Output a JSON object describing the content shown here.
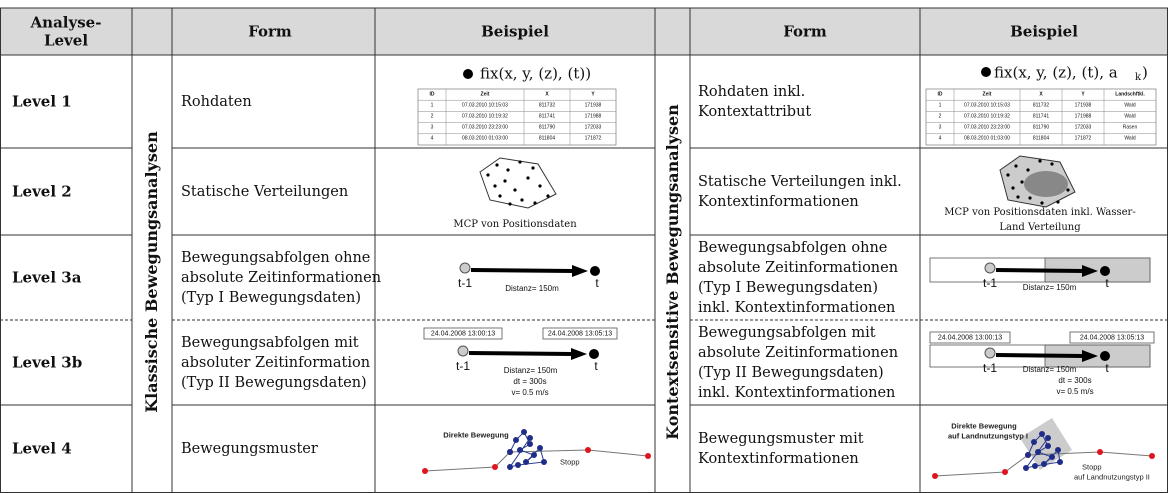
{
  "header": {
    "level": [
      "Analyse-",
      "Level"
    ],
    "form_left": "Form",
    "example_left": "Beispiel",
    "form_right": "Form",
    "example_right": "Beispiel"
  },
  "groups": {
    "left": "Klassische Bewegungsanalysen",
    "right": "Kontextsensitive Bewegungsanalysen"
  },
  "rows": [
    {
      "level": "Level 1",
      "form_left": [
        "Rohdaten"
      ],
      "form_right": [
        "Rohdaten inkl.",
        "Kontextattribut"
      ]
    },
    {
      "level": "Level 2",
      "form_left": [
        "Statische Verteilungen"
      ],
      "form_right": [
        "Statische Verteilungen inkl.",
        "Kontextinformationen"
      ]
    },
    {
      "level": "Level 3a",
      "form_left": [
        "Bewegungsabfolgen ohne",
        "absolute Zeitinformationen",
        "(Typ I Bewegungsdaten)"
      ],
      "form_right": [
        "Bewegungsabfolgen ohne",
        "absolute Zeitinformationen",
        "(Typ I Bewegungsdaten)",
        "inkl. Kontextinformationen"
      ]
    },
    {
      "level": "Level 3b",
      "form_left": [
        "Bewegungsabfolgen mit",
        "absoluter Zeitinformation",
        "(Typ II Bewegungsdaten)"
      ],
      "form_right": [
        "Bewegungsabfolgen mit",
        "absolute Zeitinformationen",
        "(Typ II Bewegungsdaten)",
        "inkl.  Kontextinformationen"
      ]
    },
    {
      "level": "Level 4",
      "form_left": [
        "Bewegungsmuster"
      ],
      "form_right": [
        "Bewegungsmuster mit",
        "Kontextinformationen"
      ]
    }
  ],
  "examples": {
    "level1_left": {
      "formula": "fix(x, y, (z), (t))",
      "table": {
        "header": [
          "ID",
          "Zeit",
          "X",
          "Y"
        ],
        "rows": [
          [
            "1",
            "07.03.2010 10:15:03",
            "811732",
            "171938"
          ],
          [
            "2",
            "07.03.2010 10:19:32",
            "811741",
            "171988"
          ],
          [
            "3",
            "07.03.2010 23:23:00",
            "811790",
            "172033"
          ],
          [
            "4",
            "08.03.2010 01:03:00",
            "811804",
            "171872"
          ]
        ]
      }
    },
    "level1_right": {
      "formula": "fix(x, y, (z), (t), a",
      "subscript": "k",
      "formula_end": ")",
      "table": {
        "header": [
          "ID",
          "Zeit",
          "X",
          "Y",
          "Landschftkl."
        ],
        "rows": [
          [
            "1",
            "07.03.2010 10:15:03",
            "811732",
            "171938",
            "Wald"
          ],
          [
            "2",
            "07.03.2010 10:19:32",
            "811741",
            "171988",
            "Wald"
          ],
          [
            "3",
            "07.03.2010 23:23:00",
            "811790",
            "172033",
            "Rasen"
          ],
          [
            "4",
            "08.03.2010 01:03:00",
            "811804",
            "171872",
            "Wald"
          ]
        ]
      }
    },
    "level2_left": {
      "caption": [
        "MCP von Positionsdaten"
      ]
    },
    "level2_right": {
      "caption": [
        "MCP von Positionsdaten inkl. Wasser-",
        "Land Verteilung"
      ]
    },
    "level3a_left": {
      "start": "t-1",
      "distance": "Distanz= 150m",
      "end": "t"
    },
    "level3a_right": {
      "start": "t-1",
      "distance": "Distanz= 150m",
      "end": "t"
    },
    "level3b_left": {
      "time_start": "24.04.2008 13:00:13",
      "time_end": "24.04.2008 13:05:13",
      "start": "t-1",
      "distance": "Distanz= 150m",
      "dt": "dt = 300s",
      "speed": "v= 0.5 m/s",
      "end": "t"
    },
    "level3b_right": {
      "time_start": "24.04.2008 13:00:13",
      "time_end": "24.04.2008 13:05:13",
      "start": "t-1",
      "distance": "Distanz= 150m",
      "dt": "dt = 300s",
      "speed": "v= 0.5 m/s",
      "end": "t"
    },
    "level4_left": {
      "movement": [
        "Direkte Bewegung"
      ],
      "stop": [
        "Stopp"
      ]
    },
    "level4_right": {
      "movement": [
        "Direkte Bewegung",
        "auf Landnutzungstyp I"
      ],
      "stop": [
        "Stopp",
        "auf Landnutzungstyp II"
      ]
    }
  }
}
